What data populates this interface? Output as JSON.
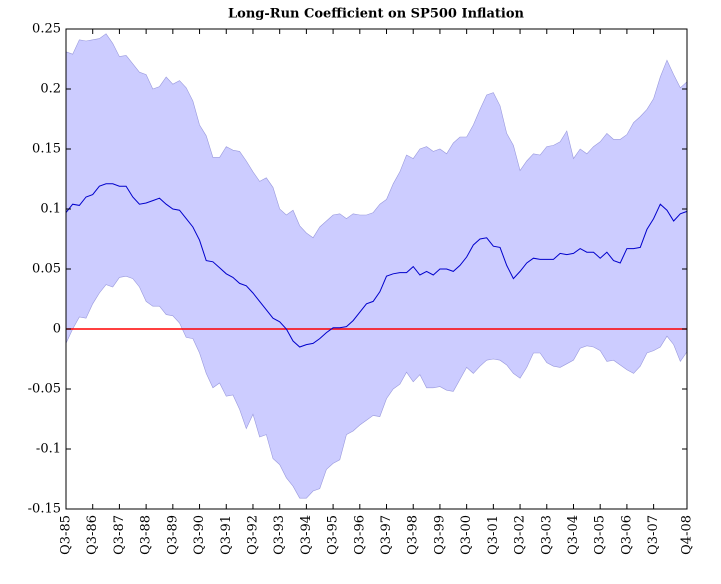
{
  "chart_data": {
    "type": "line",
    "title": "Long-Run Coefficient on SP500 Inflation",
    "categories": [
      "Q3-85",
      null,
      null,
      null,
      "Q3-86",
      null,
      null,
      null,
      "Q3-87",
      null,
      null,
      null,
      "Q3-88",
      null,
      null,
      null,
      "Q3-89",
      null,
      null,
      null,
      "Q3-90",
      null,
      null,
      null,
      "Q3-91",
      null,
      null,
      null,
      "Q3-92",
      null,
      null,
      null,
      "Q3-93",
      null,
      null,
      null,
      "Q3-94",
      null,
      null,
      null,
      "Q3-95",
      null,
      null,
      null,
      "Q3-96",
      null,
      null,
      null,
      "Q3-97",
      null,
      null,
      null,
      "Q3-98",
      null,
      null,
      null,
      "Q3-99",
      null,
      null,
      null,
      "Q3-00",
      null,
      null,
      null,
      "Q3-01",
      null,
      null,
      null,
      "Q3-02",
      null,
      null,
      null,
      "Q3-03",
      null,
      null,
      null,
      "Q3-04",
      null,
      null,
      null,
      "Q3-05",
      null,
      null,
      null,
      "Q3-06",
      null,
      null,
      null,
      "Q3-07",
      null,
      null,
      null,
      null,
      "Q4-08"
    ],
    "series": [
      {
        "color": "#0000cc",
        "values": [
          0.097,
          0.104,
          0.103,
          0.11,
          0.112,
          0.119,
          0.121,
          0.121,
          0.119,
          0.119,
          0.11,
          0.104,
          0.105,
          0.107,
          0.109,
          0.104,
          0.1,
          0.099,
          0.092,
          0.085,
          0.074,
          0.057,
          0.056,
          0.051,
          0.046,
          0.043,
          0.038,
          0.036,
          0.03,
          0.023,
          0.016,
          0.009,
          0.006,
          0.0,
          -0.01,
          -0.015,
          -0.013,
          -0.012,
          -0.008,
          -0.003,
          0.001,
          0.001,
          0.002,
          0.007,
          0.014,
          0.021,
          0.023,
          0.031,
          0.044,
          0.046,
          0.047,
          0.047,
          0.052,
          0.045,
          0.048,
          0.045,
          0.05,
          0.05,
          0.048,
          0.053,
          0.06,
          0.07,
          0.075,
          0.076,
          0.069,
          0.068,
          0.053,
          0.042,
          0.048,
          0.055,
          0.059,
          0.058,
          0.058,
          0.058,
          0.063,
          0.062,
          0.063,
          0.067,
          0.064,
          0.064,
          0.059,
          0.064,
          0.057,
          0.055,
          0.067,
          0.067,
          0.068,
          0.083,
          0.092,
          0.104,
          0.099,
          0.09,
          0.096,
          0.098
        ]
      }
    ],
    "band": {
      "color": "#ccccff",
      "edge": "#9999dd",
      "upper": [
        0.231,
        0.229,
        0.241,
        0.24,
        0.241,
        0.242,
        0.246,
        0.238,
        0.227,
        0.228,
        0.221,
        0.214,
        0.212,
        0.2,
        0.202,
        0.21,
        0.204,
        0.207,
        0.201,
        0.19,
        0.17,
        0.161,
        0.143,
        0.143,
        0.152,
        0.149,
        0.148,
        0.14,
        0.131,
        0.123,
        0.126,
        0.118,
        0.1,
        0.095,
        0.099,
        0.086,
        0.08,
        0.076,
        0.085,
        0.09,
        0.095,
        0.096,
        0.092,
        0.096,
        0.095,
        0.095,
        0.097,
        0.104,
        0.108,
        0.121,
        0.131,
        0.145,
        0.142,
        0.15,
        0.152,
        0.148,
        0.15,
        0.146,
        0.155,
        0.16,
        0.16,
        0.17,
        0.183,
        0.195,
        0.197,
        0.186,
        0.163,
        0.153,
        0.132,
        0.14,
        0.146,
        0.145,
        0.152,
        0.153,
        0.156,
        0.165,
        0.142,
        0.15,
        0.146,
        0.152,
        0.156,
        0.163,
        0.158,
        0.158,
        0.162,
        0.172,
        0.177,
        0.183,
        0.192,
        0.21,
        0.224,
        0.212,
        0.201,
        0.206
      ],
      "lower": [
        -0.012,
        0.0,
        0.01,
        0.009,
        0.021,
        0.03,
        0.037,
        0.035,
        0.043,
        0.044,
        0.042,
        0.035,
        0.023,
        0.019,
        0.019,
        0.012,
        0.011,
        0.005,
        -0.007,
        -0.008,
        -0.02,
        -0.037,
        -0.049,
        -0.045,
        -0.056,
        -0.055,
        -0.067,
        -0.083,
        -0.071,
        -0.09,
        -0.088,
        -0.108,
        -0.113,
        -0.124,
        -0.131,
        -0.141,
        -0.141,
        -0.135,
        -0.133,
        -0.117,
        -0.112,
        -0.109,
        -0.088,
        -0.085,
        -0.08,
        -0.076,
        -0.072,
        -0.073,
        -0.058,
        -0.05,
        -0.046,
        -0.036,
        -0.044,
        -0.038,
        -0.049,
        -0.049,
        -0.048,
        -0.051,
        -0.052,
        -0.042,
        -0.032,
        -0.037,
        -0.031,
        -0.026,
        -0.025,
        -0.026,
        -0.03,
        -0.037,
        -0.041,
        -0.032,
        -0.02,
        -0.02,
        -0.028,
        -0.031,
        -0.032,
        -0.029,
        -0.026,
        -0.016,
        -0.014,
        -0.015,
        -0.018,
        -0.027,
        -0.026,
        -0.03,
        -0.034,
        -0.037,
        -0.031,
        -0.02,
        -0.018,
        -0.015,
        -0.006,
        -0.013,
        -0.027,
        -0.019
      ]
    },
    "hline": {
      "value": 0,
      "color": "#ff0000"
    },
    "ylim": [
      -0.15,
      0.25
    ],
    "yticks": [
      -0.15,
      -0.1,
      -0.05,
      0,
      0.05,
      0.1,
      0.15,
      0.2,
      0.25
    ]
  }
}
